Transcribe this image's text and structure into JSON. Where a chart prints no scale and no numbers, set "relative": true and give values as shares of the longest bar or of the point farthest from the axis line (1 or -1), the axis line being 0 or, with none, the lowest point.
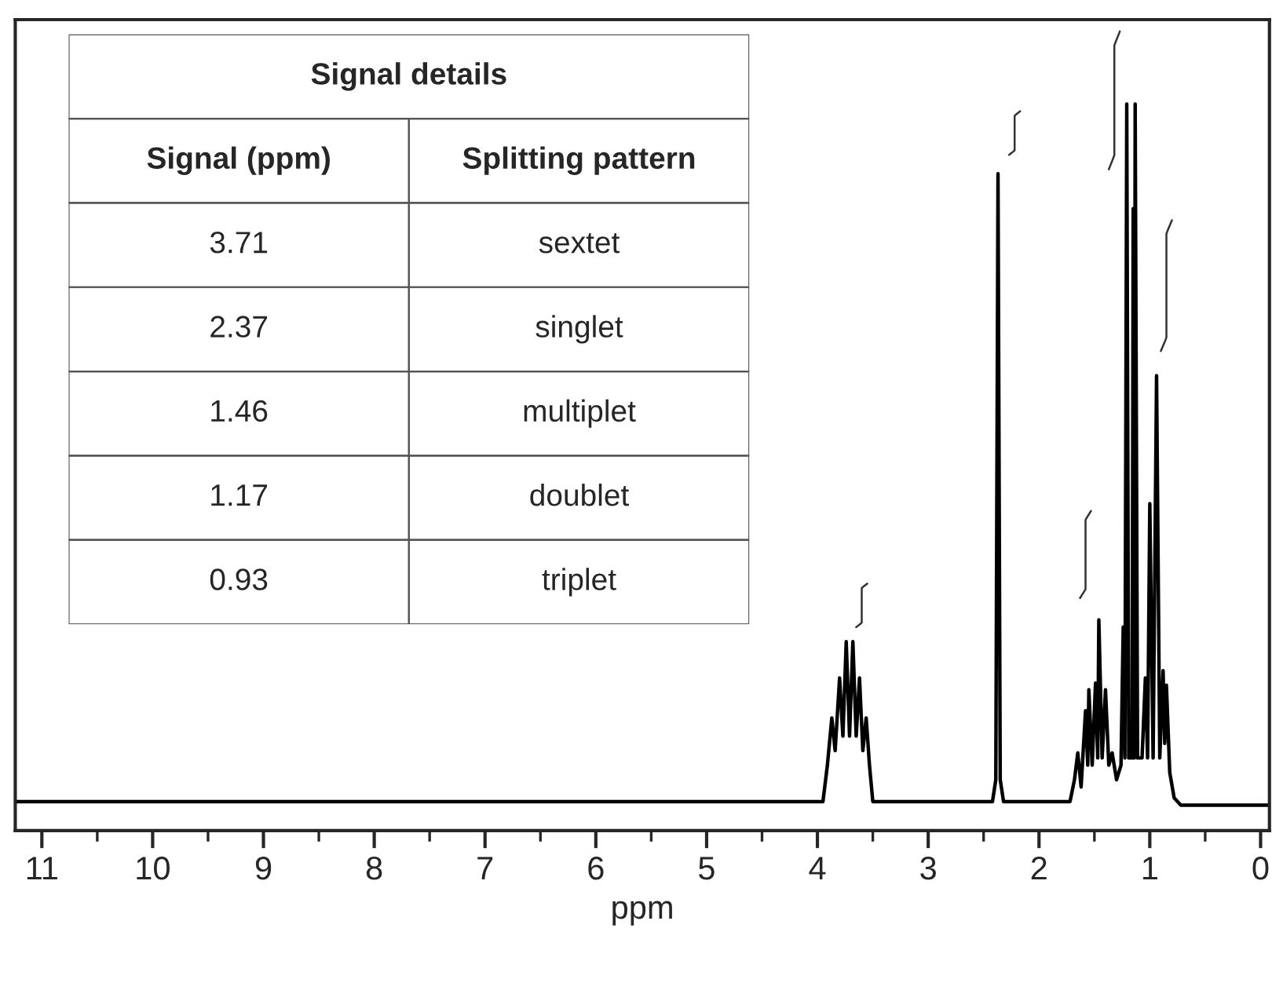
{
  "chart_data": [
    {
      "type": "line",
      "relative": true,
      "xlabel": "ppm",
      "xlim": [
        11.24,
        -0.08
      ],
      "xticks": [
        11,
        10,
        9,
        8,
        7,
        6,
        5,
        4,
        3,
        2,
        1,
        0
      ],
      "grid": false,
      "tick_labels": "x",
      "marker": "none",
      "line_style": "solid",
      "series": [
        {
          "color": "#000000",
          "x": [
            11.24,
            3.95,
            3.91,
            3.87,
            3.84,
            3.8,
            3.77,
            3.74,
            3.71,
            3.68,
            3.65,
            3.62,
            3.59,
            3.56,
            3.53,
            3.5,
            2.42,
            2.39,
            2.37,
            2.35,
            2.32,
            1.72,
            1.68,
            1.65,
            1.62,
            1.58,
            1.56,
            1.55,
            1.52,
            1.49,
            1.47,
            1.46,
            1.43,
            1.4,
            1.37,
            1.34,
            1.3,
            1.26,
            1.24,
            1.225,
            1.208,
            1.19,
            1.16,
            1.15,
            1.14,
            1.132,
            1.11,
            1.07,
            1.04,
            1.02,
            1.0,
            0.97,
            0.939,
            0.91,
            0.88,
            0.865,
            0.85,
            0.82,
            0.78,
            0.72,
            -0.08
          ],
          "values": [
            0.04,
            0.04,
            0.09,
            0.155,
            0.11,
            0.21,
            0.13,
            0.26,
            0.13,
            0.26,
            0.13,
            0.21,
            0.11,
            0.155,
            0.09,
            0.04,
            0.04,
            0.07,
            0.904,
            0.07,
            0.04,
            0.04,
            0.07,
            0.107,
            0.06,
            0.165,
            0.09,
            0.194,
            0.09,
            0.203,
            0.1,
            0.29,
            0.1,
            0.194,
            0.09,
            0.107,
            0.07,
            0.09,
            0.28,
            0.1,
            1.0,
            0.1,
            0.1,
            0.856,
            0.1,
            1.0,
            0.1,
            0.1,
            0.21,
            0.1,
            0.45,
            0.1,
            0.626,
            0.1,
            0.22,
            0.12,
            0.2,
            0.08,
            0.045,
            0.035,
            0.035
          ]
        }
      ]
    },
    {
      "type": "other",
      "title": "Signal details",
      "annotations": [
        "Signal (ppm)",
        "Splitting pattern",
        "3.71",
        "sextet",
        "2.37",
        "singlet",
        "1.46",
        "multiplet",
        "1.17",
        "doublet",
        "0.93",
        "triplet"
      ]
    }
  ]
}
